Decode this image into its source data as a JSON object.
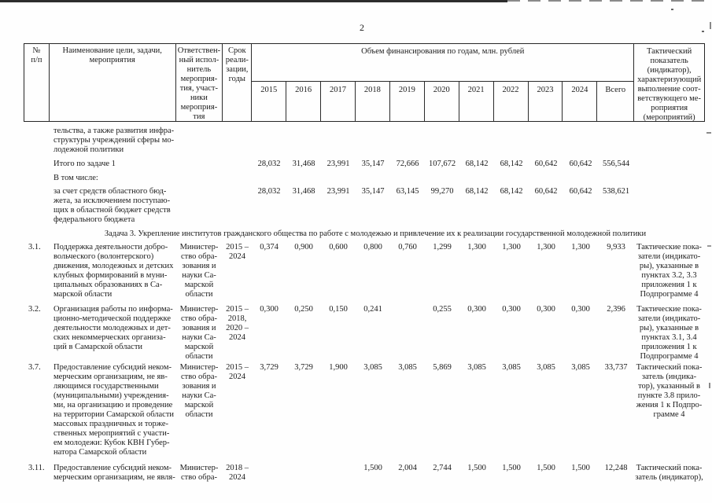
{
  "page": {
    "number": "2"
  },
  "table": {
    "header": {
      "num": "№\nп/п",
      "name": "Наименование цели, задачи,\nмероприятия",
      "executor": "Ответствен-\nный испол-\nнитель\nмероприя-\nтия, участ-\nники\nмероприя-\nтия",
      "period": "Срок\nреали-\nзации,\nгоды",
      "finance": "Объем финансирования по годам, млн. рублей",
      "indicator": "Тактический\nпоказатель\n(индикатор),\nхарактеризующий\nвыполнение соот-\nветствующего ме-\nроприятия\n(мероприятий)"
    },
    "years": [
      "2015",
      "2016",
      "2017",
      "2018",
      "2019",
      "2020",
      "2021",
      "2022",
      "2023",
      "2024",
      "Всего"
    ],
    "section_heading": "Задача 3. Укрепление институтов гражданского общества по работе с молодежью и привлечение их к реализации государственной молодежной политики",
    "rows": [
      {
        "name": "тельства, а также развития инфра-\nструктуры учреждений сферы мо-\nлодежной политики"
      },
      {
        "name": "Итого по задаче 1",
        "values": [
          "28,032",
          "31,468",
          "23,991",
          "35,147",
          "72,666",
          "107,672",
          "68,142",
          "68,142",
          "60,642",
          "60,642",
          "556,544"
        ]
      },
      {
        "name": "В том числе:"
      },
      {
        "name": "за счет средств областного бюд-\nжета, за исключением поступаю-\nщих в областной бюджет средств\nфедерального бюджета",
        "values": [
          "28,032",
          "31,468",
          "23,991",
          "35,147",
          "63,145",
          "99,270",
          "68,142",
          "68,142",
          "60,642",
          "60,642",
          "538,621"
        ]
      },
      {
        "num": "3.1.",
        "name": "Поддержка деятельности добро-\nвольческого (волонтерского)\nдвижения, молодежных и детских\nклубных формирований в муни-\nципальных образованиях в Са-\nмарской области",
        "executor": "Министер-\nство обра-\nзования и\nнауки Са-\nмарской\nобласти",
        "period": "2015 –\n2024",
        "values": [
          "0,374",
          "0,900",
          "0,600",
          "0,800",
          "0,760",
          "1,299",
          "1,300",
          "1,300",
          "1,300",
          "1,300",
          "9,933"
        ],
        "indicator": "Тактические пока-\nзатели (индикато-\nры), указанные в\nпунктах 3.2, 3.3\nприложения 1 к\nПодпрограмме 4"
      },
      {
        "num": "3.2.",
        "name": "Организация работы по информа-\nционно-методической поддержке\nдеятельности молодежных и дет-\nских некоммерческих организа-\nций в Самарской области",
        "executor": "Министер-\nство обра-\nзования и\nнауки Са-\nмарской\nобласти",
        "period": "2015 –\n2018,\n2020 –\n2024",
        "values": [
          "0,300",
          "0,250",
          "0,150",
          "0,241",
          "",
          "0,255",
          "0,300",
          "0,300",
          "0,300",
          "0,300",
          "2,396"
        ],
        "indicator": "Тактические пока-\nзатели (индикато-\nры), указанные в\nпунктах 3.1, 3.4\nприложения 1 к\nПодпрограмме 4"
      },
      {
        "num": "3.7.",
        "name": "Предоставление субсидий неком-\nмерческим организациям, не яв-\nляющимся государственными\n(муниципальными) учреждения-\nми, на организацию и проведение\nна территории Самарской области\nмассовых праздничных и торже-\nственных мероприятий с участи-\nем молодежи: Кубок КВН Губер-\nнатора Самарской области",
        "executor": "Министер-\nство обра-\nзования и\nнауки Са-\nмарской\nобласти",
        "period": "2015 –\n2024",
        "values": [
          "3,729",
          "3,729",
          "1,900",
          "3,085",
          "3,085",
          "5,869",
          "3,085",
          "3,085",
          "3,085",
          "3,085",
          "33,737"
        ],
        "indicator": "Тактический пока-\nзатель (индика-\nтор), указанный в\nпункте 3.8 прило-\nжения 1 к Подпро-\nграмме 4"
      },
      {
        "num": "3.11.",
        "name": "Предоставление субсидий неком-\nмерческим организациям, не явля-",
        "executor": "Министер-\nство обра-",
        "period": "2018 –\n2024",
        "values": [
          "",
          "",
          "",
          "1,500",
          "2,004",
          "2,744",
          "1,500",
          "1,500",
          "1,500",
          "1,500",
          "12,248"
        ],
        "indicator": "Тактический пока-\nзатель (индикатор),"
      }
    ]
  }
}
